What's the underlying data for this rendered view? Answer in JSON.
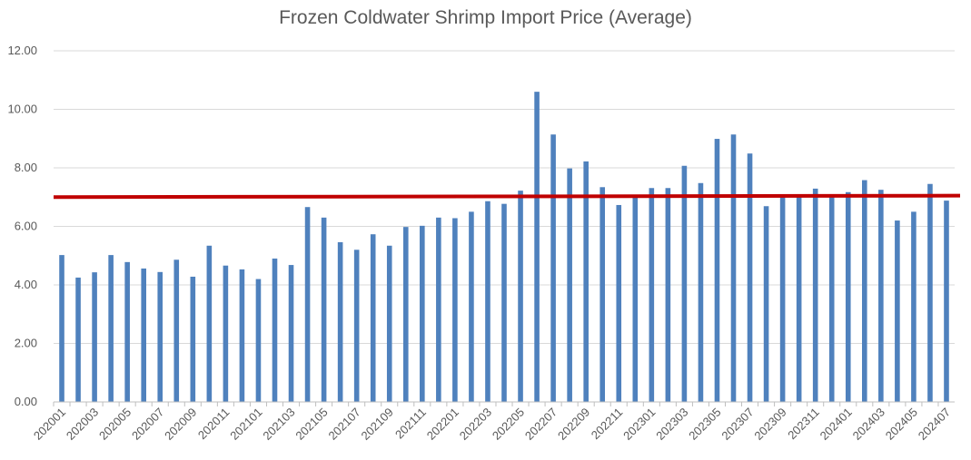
{
  "chart_data": {
    "type": "bar",
    "title": "Frozen Coldwater Shrimp Import Price (Average)",
    "xlabel": "",
    "ylabel": "",
    "ylim": [
      0,
      12
    ],
    "yticks": [
      "0.00",
      "2.00",
      "4.00",
      "6.00",
      "8.00",
      "10.00",
      "12.00"
    ],
    "grid": true,
    "legend": "none",
    "bar_color": "#4f81bd",
    "reference_line": {
      "value": 7.0,
      "end_value": 7.05,
      "color": "#c00000"
    },
    "categories": [
      "202001",
      "202002",
      "202003",
      "202004",
      "202005",
      "202006",
      "202007",
      "202008",
      "202009",
      "202010",
      "202011",
      "202012",
      "202101",
      "202102",
      "202103",
      "202104",
      "202105",
      "202106",
      "202107",
      "202108",
      "202109",
      "202110",
      "202111",
      "202112",
      "202201",
      "202202",
      "202203",
      "202204",
      "202205",
      "202206",
      "202207",
      "202208",
      "202209",
      "202210",
      "202211",
      "202212",
      "202301",
      "202302",
      "202303",
      "202304",
      "202305",
      "202306",
      "202307",
      "202308",
      "202309",
      "202310",
      "202311",
      "202312",
      "202401",
      "202402",
      "202403",
      "202404",
      "202405",
      "202406",
      "202407"
    ],
    "tick_labels": [
      "202001",
      "202003",
      "202005",
      "202007",
      "202009",
      "202011",
      "202101",
      "202103",
      "202105",
      "202107",
      "202109",
      "202111",
      "202201",
      "202203",
      "202205",
      "202207",
      "202209",
      "202211",
      "202301",
      "202303",
      "202305",
      "202307",
      "202309",
      "202311",
      "202401",
      "202403",
      "202405",
      "202407"
    ],
    "values": [
      5.02,
      4.25,
      4.43,
      5.02,
      4.78,
      4.56,
      4.44,
      4.86,
      4.28,
      5.34,
      4.66,
      4.53,
      4.2,
      4.9,
      4.68,
      6.66,
      6.3,
      5.46,
      5.2,
      5.73,
      5.34,
      5.98,
      6.02,
      6.3,
      6.28,
      6.5,
      6.86,
      6.77,
      7.22,
      10.6,
      9.14,
      7.98,
      8.22,
      7.34,
      6.73,
      7.04,
      7.31,
      7.31,
      8.07,
      7.48,
      8.99,
      9.14,
      8.49,
      6.69,
      7.05,
      7.05,
      7.29,
      7.05,
      7.17,
      7.58,
      7.25,
      6.2,
      6.5,
      7.45,
      6.88
    ]
  }
}
